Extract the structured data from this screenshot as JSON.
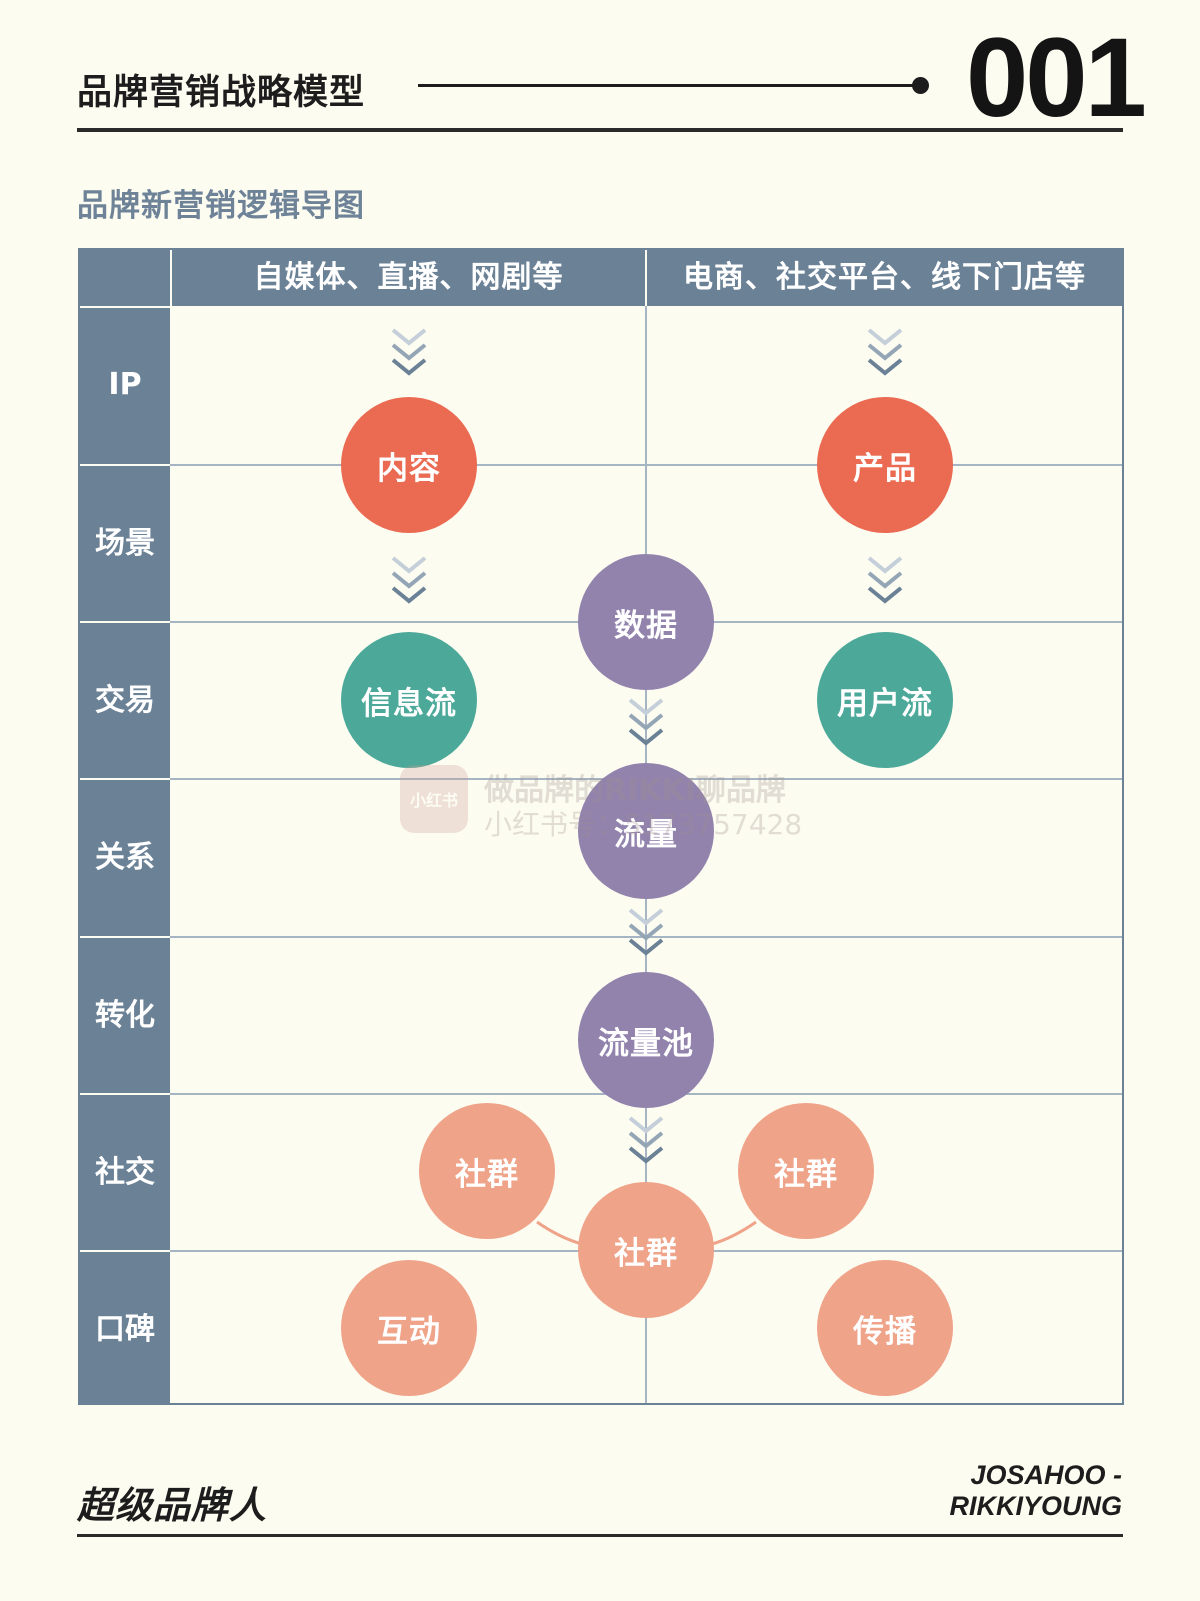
{
  "header": {
    "title": "品牌营销战略模型",
    "number": "001"
  },
  "subtitle": "品牌新营销逻辑导图",
  "columns": [
    "自媒体、直播、网剧等",
    "电商、社交平台、线下门店等"
  ],
  "rows": [
    "IP",
    "场景",
    "交易",
    "关系",
    "转化",
    "社交",
    "口碑"
  ],
  "nodes": {
    "content": "内容",
    "product": "产品",
    "data": "数据",
    "info_flow": "信息流",
    "user_flow": "用户流",
    "traffic": "流量",
    "traffic_pool": "流量池",
    "community_left": "社群",
    "community_right": "社群",
    "community_center": "社群",
    "interaction": "互动",
    "spread": "传播"
  },
  "watermark": {
    "logo": "小红书",
    "line1": "做品牌的RIKKI聊品牌",
    "line2": "小红书号：5173757428"
  },
  "footer": {
    "brand": "超级品牌人",
    "credit_line1": "JOSAHOO -",
    "credit_line2": "RIKKIYOUNG"
  },
  "colors": {
    "background": "#fdfcf1",
    "table_header": "#6b8196",
    "red": "#ea6a52",
    "teal": "#4ca99a",
    "purple": "#9283ad",
    "salmon": "#efa389"
  }
}
